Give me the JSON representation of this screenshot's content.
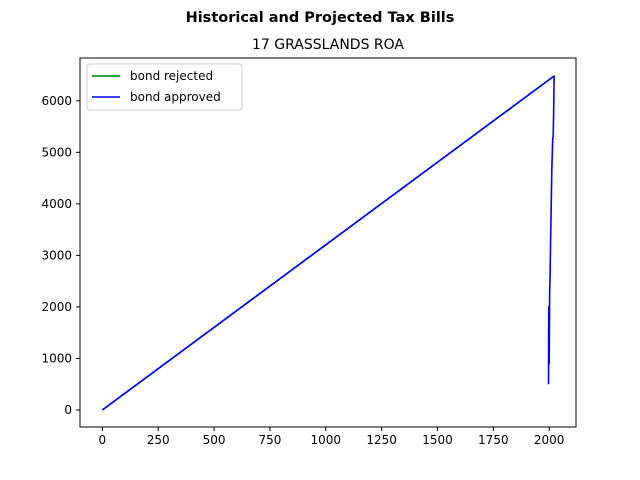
{
  "chart_data": {
    "type": "line",
    "suptitle": "Historical and Projected Tax Bills",
    "title": "17 GRASSLANDS ROA",
    "xlabel": "",
    "ylabel": "",
    "xlim": [
      -100,
      2120
    ],
    "ylim": [
      -330,
      6830
    ],
    "xticks": [
      0,
      250,
      500,
      750,
      1000,
      1250,
      1500,
      1750,
      2000
    ],
    "yticks": [
      0,
      1000,
      2000,
      3000,
      4000,
      5000,
      6000
    ],
    "grid": false,
    "legend": {
      "position": "upper left"
    },
    "series": [
      {
        "name": "bond rejected",
        "color": "#008000",
        "x": [
          0,
          2022
        ],
        "y": [
          0,
          6480
        ]
      },
      {
        "name": "bond approved",
        "color": "#0000ff",
        "x": [
          0,
          2022,
          2020,
          2018,
          2016,
          2014,
          2012,
          2010,
          2008,
          2006,
          2004,
          2002,
          2000,
          1999,
          1998,
          1997
        ],
        "y": [
          0,
          6480,
          5800,
          5300,
          5280,
          5000,
          4700,
          4200,
          3700,
          3200,
          2600,
          2300,
          900,
          1300,
          2000,
          500
        ]
      }
    ]
  }
}
